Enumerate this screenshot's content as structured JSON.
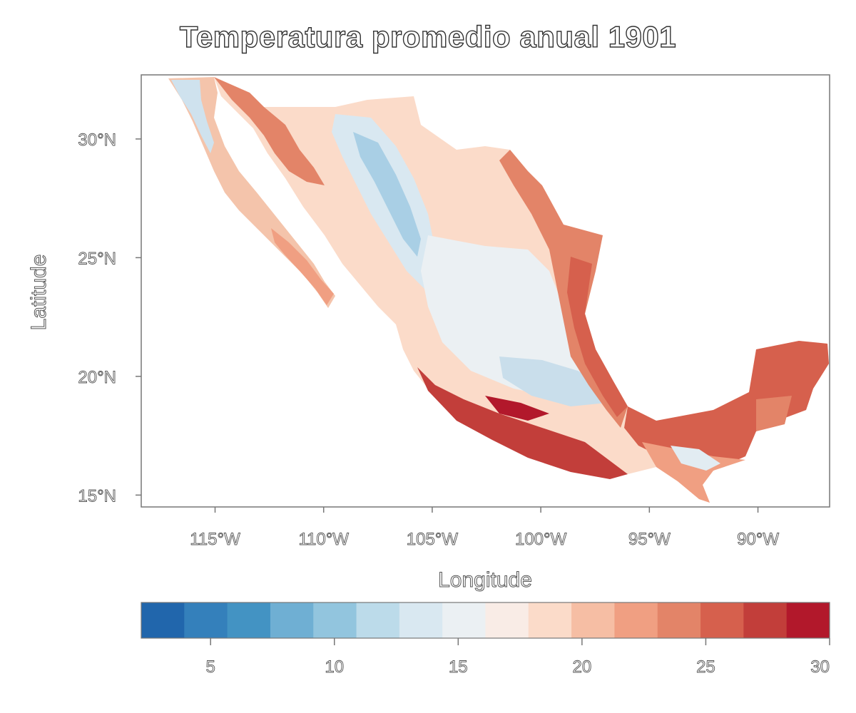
{
  "chart_data": {
    "type": "heatmap",
    "title": "Temperatura promedio anual 1901",
    "xlabel": "Longitude",
    "ylabel": "Latitude",
    "x_ticks": [
      "115°W",
      "110°W",
      "105°W",
      "100°W",
      "95°W",
      "90°W"
    ],
    "x_tick_values": [
      -115,
      -110,
      -105,
      -100,
      -95,
      -90
    ],
    "y_ticks": [
      "15°N",
      "20°N",
      "25°N",
      "30°N"
    ],
    "y_tick_values": [
      15,
      20,
      25,
      30
    ],
    "xlim": [
      -118.4,
      -86.7
    ],
    "ylim": [
      14.5,
      32.7
    ],
    "colorbar": {
      "range": [
        2.2,
        30
      ],
      "tick_labels": [
        "5",
        "10",
        "15",
        "20",
        "25",
        "30"
      ],
      "tick_values": [
        5,
        10,
        15,
        20,
        25,
        30
      ],
      "colors": [
        "#2166ac",
        "#3480bb",
        "#4393c3",
        "#6fafd3",
        "#92c5de",
        "#bcdbea",
        "#d9e8f1",
        "#ebf0f3",
        "#f9ece6",
        "#fbdbc9",
        "#f6bea4",
        "#f09f82",
        "#e38468",
        "#d6604d",
        "#c23e3a",
        "#b2182b"
      ]
    }
  }
}
